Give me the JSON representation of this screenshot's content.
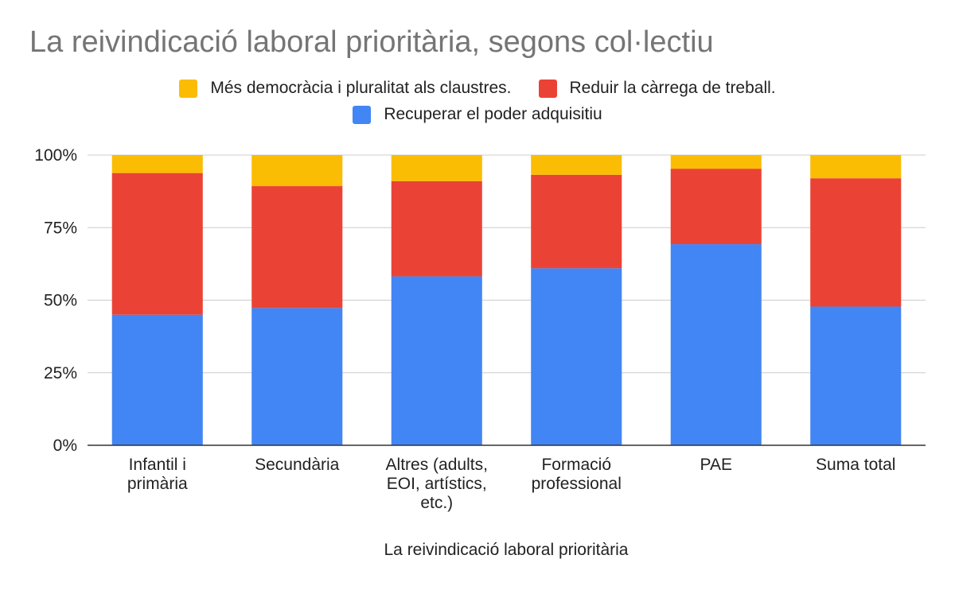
{
  "chart_data": {
    "type": "bar",
    "stacked": true,
    "title": "La reivindicació laboral prioritària, segons col·lectiu",
    "xlabel": "La reivindicació laboral prioritària",
    "ylabel": "",
    "ylim": [
      0,
      100
    ],
    "y_ticks": [
      "0%",
      "25%",
      "50%",
      "75%",
      "100%"
    ],
    "categories": [
      "Infantil i primària",
      "Secundària",
      "Altres (adults, EOI, artístics, etc.)",
      "Formació professional",
      "PAE",
      "Suma total"
    ],
    "series": [
      {
        "name": "Recuperar el poder adquisitiu",
        "color": "#4285f4",
        "values": [
          45,
          47.3,
          58.2,
          61,
          69.3,
          47.8
        ]
      },
      {
        "name": "Reduir la càrrega de treball.",
        "color": "#ea4335",
        "values": [
          48.8,
          42,
          32.8,
          32.2,
          26,
          44.2
        ]
      },
      {
        "name": "Més democràcia i pluralitat als claustres.",
        "color": "#fbbc04",
        "values": [
          6.2,
          10.7,
          9,
          6.8,
          4.7,
          8
        ]
      }
    ],
    "legend_position": "top",
    "legend_order": [
      2,
      1,
      0
    ],
    "grid": true
  }
}
